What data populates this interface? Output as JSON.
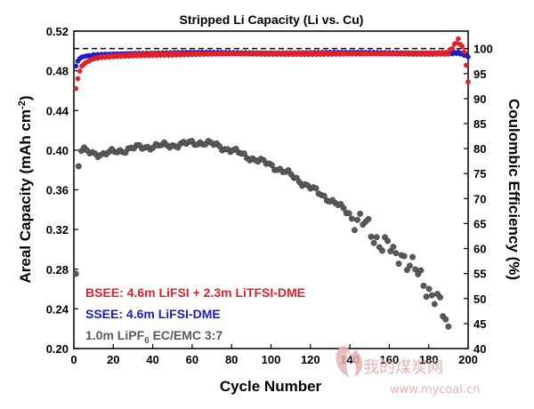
{
  "chart_data": {
    "type": "scatter",
    "title": "Stripped Li Capacity (Li vs. Cu)",
    "xlabel": "Cycle Number",
    "ylabel_left": "Areal Capacity (mAh cm",
    "ylabel_left_sup": "-2",
    "ylabel_left_end": ")",
    "ylabel_right": "Coulombic Efficiency (%)",
    "xlim": [
      0,
      200
    ],
    "ylim_left": [
      0.2,
      0.52
    ],
    "ylim_right": [
      40,
      103.5
    ],
    "x_ticks": [
      0,
      20,
      40,
      60,
      80,
      100,
      120,
      140,
      160,
      180,
      200
    ],
    "y_left_ticks": [
      0.2,
      0.24,
      0.28,
      0.32,
      0.36,
      0.4,
      0.44,
      0.48,
      0.52
    ],
    "y_right_ticks": [
      40,
      45,
      50,
      55,
      60,
      65,
      70,
      75,
      80,
      85,
      90,
      95,
      100
    ],
    "reference_line": {
      "value": 100,
      "axis": "right",
      "style": "dashed"
    },
    "series": [
      {
        "name": "BSEE: 4.6m LiFSI + 2.3m LiTFSI-DME",
        "color": "#e0202a",
        "axis": "right",
        "x": [
          1,
          2,
          3,
          4,
          6,
          8,
          10,
          14,
          20,
          30,
          40,
          60,
          80,
          100,
          120,
          140,
          160,
          180,
          190,
          195,
          198,
          200
        ],
        "y": [
          92.0,
          94.0,
          95.5,
          96.5,
          97.2,
          97.6,
          98.0,
          98.3,
          98.5,
          98.7,
          98.8,
          98.9,
          99.0,
          99.0,
          99.0,
          99.0,
          99.0,
          99.0,
          99.1,
          101.8,
          99.5,
          93.5
        ]
      },
      {
        "name": "SSEE: 4.6m LiFSI-DME",
        "color": "#1c1cc8",
        "axis": "right",
        "x": [
          1,
          2,
          3,
          4,
          6,
          8,
          10,
          14,
          20,
          30,
          40,
          60,
          80,
          100,
          120,
          140,
          160,
          180,
          190,
          195,
          198,
          200
        ],
        "y": [
          96.5,
          97.5,
          98.0,
          98.3,
          98.5,
          98.6,
          98.7,
          98.8,
          98.9,
          99.0,
          99.0,
          99.1,
          99.1,
          99.1,
          99.1,
          99.1,
          99.1,
          99.1,
          99.0,
          99.2,
          98.8,
          98.5
        ]
      },
      {
        "name": "1.0m LiPF",
        "name_sub": "6",
        "name_end": " EC/EMC 3:7",
        "color": "#5a5a5a",
        "axis": "left",
        "x": [
          1,
          2,
          4,
          6,
          10,
          15,
          20,
          30,
          40,
          50,
          60,
          65,
          70,
          80,
          90,
          100,
          110,
          120,
          130,
          140,
          145,
          150,
          155,
          160,
          163,
          166,
          170,
          175,
          180,
          185,
          190
        ],
        "y": [
          0.275,
          0.38,
          0.402,
          0.398,
          0.397,
          0.396,
          0.398,
          0.402,
          0.404,
          0.405,
          0.407,
          0.408,
          0.406,
          0.4,
          0.392,
          0.385,
          0.375,
          0.362,
          0.35,
          0.336,
          0.328,
          0.318,
          0.31,
          0.3,
          0.29,
          0.3,
          0.285,
          0.272,
          0.262,
          0.245,
          0.218
        ]
      }
    ]
  },
  "watermark": {
    "text": "我的煤炭网",
    "url": "www.mycoal.cn",
    "color": "#e3a6a6"
  }
}
